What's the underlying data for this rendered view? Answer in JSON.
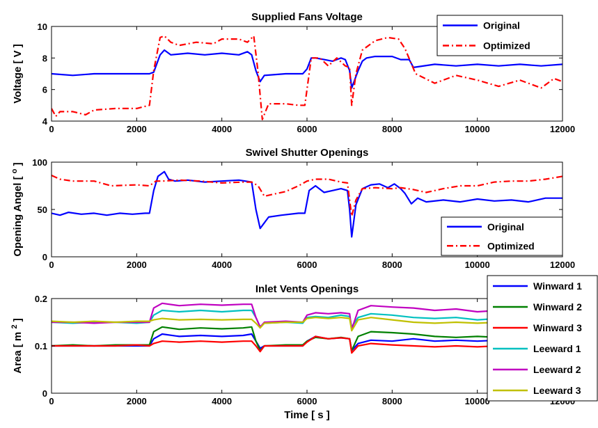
{
  "chart_data": [
    {
      "type": "line",
      "title": "Supplied Fans Voltage",
      "xlabel": "",
      "ylabel": "Voltage [ V ]",
      "xlim": [
        0,
        12000
      ],
      "ylim": [
        4,
        10
      ],
      "xticks": [
        0,
        2000,
        4000,
        6000,
        8000,
        10000,
        12000
      ],
      "yticks": [
        4,
        6,
        8,
        10
      ],
      "legend_position": "top-right",
      "series": [
        {
          "name": "Original",
          "color": "#0000ff",
          "dash": "solid",
          "x": [
            0,
            500,
            1000,
            1500,
            2000,
            2200,
            2300,
            2400,
            2550,
            2650,
            2800,
            3200,
            3600,
            4000,
            4400,
            4600,
            4700,
            4800,
            4900,
            5000,
            5500,
            5900,
            6000,
            6100,
            6200,
            6400,
            6600,
            6800,
            6900,
            7000,
            7050,
            7200,
            7300,
            7400,
            7600,
            8000,
            8200,
            8400,
            8500,
            9000,
            9500,
            10000,
            10500,
            11000,
            11500,
            12000
          ],
          "y": [
            7.0,
            6.9,
            7.0,
            7.0,
            7.0,
            7.0,
            7.0,
            7.1,
            8.2,
            8.5,
            8.2,
            8.3,
            8.2,
            8.3,
            8.2,
            8.4,
            8.2,
            7.2,
            6.5,
            6.9,
            7.0,
            7.0,
            7.3,
            8.0,
            8.0,
            7.9,
            7.8,
            8.0,
            7.9,
            7.2,
            6.1,
            7.2,
            7.8,
            8.0,
            8.1,
            8.1,
            7.9,
            7.9,
            7.4,
            7.6,
            7.5,
            7.6,
            7.5,
            7.6,
            7.5,
            7.6
          ]
        },
        {
          "name": "Optimized",
          "color": "#ff0000",
          "dash": "dashdot",
          "x": [
            0,
            100,
            200,
            500,
            800,
            1000,
            1500,
            2000,
            2300,
            2400,
            2550,
            2650,
            2800,
            3000,
            3400,
            3800,
            4000,
            4400,
            4600,
            4750,
            4850,
            4950,
            5100,
            5500,
            5800,
            5950,
            6100,
            6300,
            6500,
            6700,
            6900,
            7000,
            7050,
            7150,
            7300,
            7600,
            7900,
            8150,
            8300,
            8550,
            8700,
            9000,
            9500,
            10000,
            10500,
            11000,
            11500,
            11800,
            12000
          ],
          "y": [
            4.8,
            4.3,
            4.6,
            4.6,
            4.4,
            4.7,
            4.8,
            4.8,
            5.0,
            7.2,
            9.3,
            9.4,
            9.0,
            8.8,
            9.0,
            8.9,
            9.2,
            9.2,
            9.0,
            9.4,
            7.1,
            4.1,
            5.1,
            5.1,
            5.0,
            5.0,
            8.0,
            8.0,
            7.5,
            8.0,
            7.5,
            7.4,
            5.0,
            7.0,
            8.5,
            9.1,
            9.3,
            9.2,
            8.6,
            7.0,
            6.8,
            6.4,
            6.9,
            6.6,
            6.2,
            6.6,
            6.1,
            6.7,
            6.5
          ]
        }
      ]
    },
    {
      "type": "line",
      "title": "Swivel Shutter Openings",
      "xlabel": "",
      "ylabel": "Opening Angel [ o ]",
      "ylabel_text": "Opening Angel [",
      "ylabel_sup": "o",
      "ylabel_close": "]",
      "xlim": [
        0,
        12000
      ],
      "ylim": [
        0,
        100
      ],
      "xticks": [
        0,
        2000,
        4000,
        6000,
        8000,
        10000,
        12000
      ],
      "yticks": [
        0,
        50,
        100
      ],
      "legend_position": "bottom-right",
      "series": [
        {
          "name": "Original",
          "color": "#0000ff",
          "dash": "solid",
          "x": [
            0,
            200,
            400,
            700,
            1000,
            1300,
            1600,
            1900,
            2200,
            2300,
            2400,
            2500,
            2650,
            2750,
            2900,
            3200,
            3600,
            4000,
            4400,
            4700,
            4800,
            4900,
            5100,
            5400,
            5800,
            5950,
            6050,
            6200,
            6400,
            6600,
            6800,
            6950,
            7000,
            7050,
            7150,
            7300,
            7500,
            7700,
            7900,
            8050,
            8200,
            8300,
            8450,
            8600,
            8800,
            9200,
            9600,
            10000,
            10400,
            10800,
            11200,
            11600,
            12000
          ],
          "y": [
            46,
            44,
            47,
            45,
            46,
            44,
            46,
            45,
            46,
            46,
            70,
            85,
            90,
            82,
            80,
            81,
            79,
            80,
            81,
            79,
            50,
            30,
            42,
            44,
            46,
            46,
            70,
            75,
            68,
            70,
            72,
            70,
            50,
            21,
            55,
            72,
            76,
            77,
            73,
            77,
            72,
            67,
            56,
            62,
            58,
            60,
            58,
            61,
            59,
            60,
            58,
            62,
            62
          ]
        },
        {
          "name": "Optimized",
          "color": "#ff0000",
          "dash": "dashdot",
          "x": [
            0,
            200,
            500,
            1000,
            1400,
            2000,
            2300,
            2450,
            2600,
            3000,
            3500,
            4000,
            4500,
            4700,
            4850,
            5000,
            5200,
            5500,
            5800,
            6000,
            6200,
            6500,
            6800,
            6950,
            7000,
            7050,
            7150,
            7300,
            7600,
            8000,
            8200,
            8500,
            8800,
            9200,
            9600,
            10000,
            10400,
            10800,
            11200,
            11600,
            12000
          ],
          "y": [
            86,
            82,
            80,
            80,
            75,
            76,
            75,
            80,
            80,
            81,
            80,
            78,
            79,
            79,
            75,
            64,
            66,
            69,
            75,
            80,
            82,
            82,
            79,
            78,
            60,
            43,
            60,
            72,
            73,
            72,
            73,
            71,
            68,
            72,
            75,
            75,
            79,
            80,
            80,
            82,
            85
          ]
        }
      ]
    },
    {
      "type": "line",
      "title": "Inlet Vents Openings",
      "xlabel": "Time [ s ]",
      "ylabel": "Area [ m2 ]",
      "ylabel_text": "Area [ m",
      "ylabel_sup": "2",
      "ylabel_close": "]",
      "xlim": [
        0,
        12000
      ],
      "ylim": [
        0,
        0.2
      ],
      "xticks": [
        0,
        2000,
        4000,
        6000,
        8000,
        10000,
        12000
      ],
      "yticks": [
        0,
        0.1,
        0.2
      ],
      "legend_position": "top-right",
      "series": [
        {
          "name": "Winward 1",
          "color": "#0000ff",
          "dash": "solid",
          "x": [
            0,
            500,
            1000,
            1500,
            2000,
            2300,
            2400,
            2600,
            3000,
            3500,
            4000,
            4500,
            4700,
            4800,
            4900,
            5000,
            5500,
            5900,
            6000,
            6200,
            6500,
            6800,
            7000,
            7050,
            7200,
            7500,
            8000,
            8500,
            9000,
            9500,
            10000,
            10500
          ],
          "y": [
            0.1,
            0.1,
            0.1,
            0.1,
            0.1,
            0.1,
            0.115,
            0.125,
            0.12,
            0.122,
            0.12,
            0.122,
            0.125,
            0.11,
            0.095,
            0.1,
            0.1,
            0.1,
            0.11,
            0.12,
            0.115,
            0.117,
            0.115,
            0.09,
            0.105,
            0.112,
            0.11,
            0.115,
            0.11,
            0.112,
            0.11,
            0.112
          ]
        },
        {
          "name": "Winward 2",
          "color": "#008000",
          "dash": "solid",
          "x": [
            0,
            500,
            1000,
            1500,
            2000,
            2300,
            2400,
            2600,
            3000,
            3500,
            4000,
            4500,
            4700,
            4800,
            4900,
            5000,
            5500,
            5900,
            6000,
            6200,
            6500,
            6800,
            7000,
            7050,
            7200,
            7500,
            8000,
            8500,
            9000,
            9500,
            10000,
            10500
          ],
          "y": [
            0.1,
            0.102,
            0.1,
            0.102,
            0.102,
            0.102,
            0.13,
            0.14,
            0.135,
            0.138,
            0.136,
            0.138,
            0.14,
            0.11,
            0.09,
            0.1,
            0.102,
            0.102,
            0.11,
            0.118,
            0.115,
            0.118,
            0.115,
            0.09,
            0.12,
            0.13,
            0.128,
            0.125,
            0.12,
            0.118,
            0.12,
            0.118
          ]
        },
        {
          "name": "Winward 3",
          "color": "#ff0000",
          "dash": "solid",
          "x": [
            0,
            500,
            1000,
            1500,
            2000,
            2300,
            2400,
            2600,
            3000,
            3500,
            4000,
            4500,
            4700,
            4800,
            4900,
            5000,
            5500,
            5900,
            6000,
            6200,
            6500,
            6800,
            7000,
            7050,
            7200,
            7500,
            8000,
            8500,
            9000,
            9500,
            10000,
            10500
          ],
          "y": [
            0.1,
            0.1,
            0.1,
            0.1,
            0.102,
            0.1,
            0.105,
            0.11,
            0.108,
            0.11,
            0.108,
            0.11,
            0.11,
            0.1,
            0.088,
            0.1,
            0.1,
            0.1,
            0.108,
            0.12,
            0.115,
            0.117,
            0.115,
            0.085,
            0.1,
            0.105,
            0.102,
            0.1,
            0.098,
            0.1,
            0.098,
            0.1
          ]
        },
        {
          "name": "Leeward 1",
          "color": "#00c0c0",
          "dash": "solid",
          "x": [
            0,
            500,
            1000,
            1500,
            2000,
            2300,
            2400,
            2600,
            3000,
            3500,
            4000,
            4500,
            4700,
            4800,
            4900,
            5000,
            5500,
            5900,
            6000,
            6200,
            6500,
            6800,
            7000,
            7050,
            7200,
            7500,
            8000,
            8500,
            9000,
            9500,
            10000,
            10500
          ],
          "y": [
            0.15,
            0.148,
            0.15,
            0.15,
            0.148,
            0.15,
            0.165,
            0.175,
            0.172,
            0.175,
            0.172,
            0.175,
            0.175,
            0.16,
            0.14,
            0.148,
            0.15,
            0.148,
            0.16,
            0.162,
            0.16,
            0.165,
            0.162,
            0.14,
            0.16,
            0.168,
            0.165,
            0.16,
            0.158,
            0.16,
            0.155,
            0.158
          ]
        },
        {
          "name": "Leeward 2",
          "color": "#c000c0",
          "dash": "solid",
          "x": [
            0,
            500,
            1000,
            1500,
            2000,
            2300,
            2400,
            2600,
            3000,
            3500,
            4000,
            4500,
            4700,
            4800,
            4900,
            5000,
            5500,
            5900,
            6000,
            6200,
            6500,
            6800,
            7000,
            7050,
            7200,
            7500,
            8000,
            8500,
            9000,
            9500,
            10000,
            10500
          ],
          "y": [
            0.15,
            0.15,
            0.148,
            0.15,
            0.15,
            0.15,
            0.18,
            0.19,
            0.185,
            0.188,
            0.186,
            0.188,
            0.188,
            0.16,
            0.14,
            0.15,
            0.152,
            0.15,
            0.165,
            0.17,
            0.168,
            0.17,
            0.168,
            0.135,
            0.175,
            0.185,
            0.182,
            0.18,
            0.175,
            0.178,
            0.172,
            0.175
          ]
        },
        {
          "name": "Leeward 3",
          "color": "#c0c000",
          "dash": "solid",
          "x": [
            0,
            500,
            1000,
            1500,
            2000,
            2300,
            2400,
            2600,
            3000,
            3500,
            4000,
            4500,
            4700,
            4800,
            4900,
            5000,
            5500,
            5900,
            6000,
            6200,
            6500,
            6800,
            7000,
            7050,
            7200,
            7500,
            8000,
            8500,
            9000,
            9500,
            10000,
            10500
          ],
          "y": [
            0.152,
            0.15,
            0.152,
            0.15,
            0.152,
            0.152,
            0.155,
            0.158,
            0.155,
            0.156,
            0.155,
            0.156,
            0.156,
            0.148,
            0.138,
            0.148,
            0.15,
            0.15,
            0.158,
            0.16,
            0.158,
            0.16,
            0.158,
            0.132,
            0.155,
            0.16,
            0.155,
            0.15,
            0.148,
            0.15,
            0.148,
            0.15
          ]
        }
      ]
    }
  ]
}
